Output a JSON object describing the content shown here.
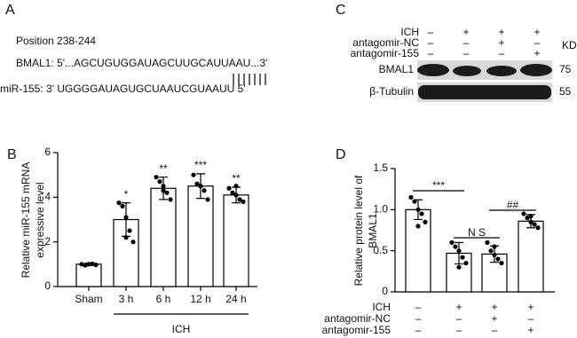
{
  "panel_a": {
    "label": "A",
    "position": "Position 238-244",
    "bmal1": "BMAL1: 5'...AGCUGUGGAUAGCUUGCAUUAAU...3'",
    "mir155": "miR-155: 3'   UGGGGAUAGUGCUAAUCGUAAUU     5'"
  },
  "panel_c": {
    "label": "C",
    "rows": [
      {
        "name": "ICH",
        "lanes": [
          "–",
          "+",
          "+",
          "+"
        ]
      },
      {
        "name": "antagomir-NC",
        "lanes": [
          "–",
          "–",
          "+",
          "–"
        ]
      },
      {
        "name": "antagomir-155",
        "lanes": [
          "–",
          "–",
          "–",
          "+"
        ]
      }
    ],
    "unit": "KD",
    "blots": [
      {
        "name": "BMAL1",
        "size": "75"
      },
      {
        "name": "β-Tubulin",
        "size": "55"
      }
    ]
  },
  "chart_data": [
    {
      "type": "bar",
      "label": "B",
      "ylabel": [
        "Relative miR-155 mRNA",
        "expressive level"
      ],
      "categories": [
        "Sham",
        "3 h",
        "6 h",
        "12 h",
        "24 h"
      ],
      "values": [
        1.0,
        3.0,
        4.4,
        4.5,
        4.1
      ],
      "errors": [
        0.05,
        0.75,
        0.5,
        0.55,
        0.35
      ],
      "points": [
        [
          1.0,
          0.95,
          1.0,
          1.02,
          0.97,
          1.0
        ],
        [
          3.75,
          3.6,
          3.1,
          2.5,
          2.0,
          2.2
        ],
        [
          4.9,
          4.7,
          4.3,
          4.2,
          3.9,
          4.5
        ],
        [
          5.0,
          4.6,
          4.5,
          4.3,
          3.9,
          4.5
        ],
        [
          4.4,
          4.2,
          4.1,
          3.9,
          3.8,
          4.5
        ]
      ],
      "annotations": [
        null,
        "*",
        "**",
        "***",
        "**"
      ],
      "group_label": "ICH",
      "color": "#ffffff",
      "edgecolor": "#000000",
      "ylim": [
        0,
        6
      ],
      "yticks": [
        0,
        2,
        4,
        6
      ]
    },
    {
      "type": "bar",
      "label": "D",
      "ylabel": [
        "Relative protein level of",
        "BMAL1"
      ],
      "categories": [
        null,
        null,
        null,
        null
      ],
      "values": [
        1.0,
        0.47,
        0.46,
        0.86
      ],
      "errors": [
        0.12,
        0.13,
        0.1,
        0.08
      ],
      "points": [
        [
          1.15,
          1.1,
          1.0,
          0.95,
          0.85,
          0.8
        ],
        [
          0.6,
          0.55,
          0.5,
          0.42,
          0.35,
          0.3
        ],
        [
          0.6,
          0.5,
          0.45,
          0.4,
          0.35,
          0.55
        ],
        [
          0.95,
          0.9,
          0.85,
          0.82,
          0.78,
          0.92
        ]
      ],
      "brackets": [
        {
          "label": "***"
        },
        {
          "label": "N S"
        },
        {
          "label": "##"
        }
      ],
      "table": [
        {
          "name": "ICH",
          "lanes": [
            "–",
            "+",
            "+",
            "+"
          ]
        },
        {
          "name": "antagomir-NC",
          "lanes": [
            "–",
            "–",
            "+",
            "–"
          ]
        },
        {
          "name": "antagomir-155",
          "lanes": [
            "–",
            "–",
            "–",
            "+"
          ]
        }
      ],
      "color": "#ffffff",
      "edgecolor": "#000000",
      "ylim": [
        0,
        1.5
      ],
      "yticks": [
        0,
        0.5,
        {
          "value": 1,
          "label": "1.0"
        },
        1.5
      ]
    }
  ]
}
